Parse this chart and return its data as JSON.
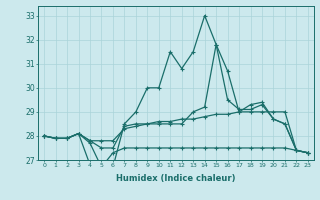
{
  "xlabel": "Humidex (Indice chaleur)",
  "xlim": [
    -0.5,
    23.5
  ],
  "ylim": [
    27,
    33.4
  ],
  "yticks": [
    27,
    28,
    29,
    30,
    31,
    32,
    33
  ],
  "xticks": [
    0,
    1,
    2,
    3,
    4,
    5,
    6,
    7,
    8,
    9,
    10,
    11,
    12,
    13,
    14,
    15,
    16,
    17,
    18,
    19,
    20,
    21,
    22,
    23
  ],
  "bg_color": "#cce9ed",
  "grid_color": "#aad4d9",
  "line_color": "#1a6e6a",
  "line_width": 0.9,
  "marker": "+",
  "marker_size": 3.5,
  "marker_ew": 0.8,
  "series": [
    [
      28.0,
      27.9,
      27.9,
      28.1,
      27.7,
      26.7,
      26.7,
      28.5,
      29.0,
      30.0,
      30.0,
      31.5,
      30.8,
      31.5,
      33.0,
      31.8,
      30.7,
      29.0,
      29.3,
      29.4,
      28.7,
      28.5,
      27.4,
      27.3
    ],
    [
      28.0,
      27.9,
      27.9,
      28.1,
      27.8,
      27.5,
      27.5,
      28.4,
      28.5,
      28.5,
      28.5,
      28.5,
      28.5,
      29.0,
      29.2,
      31.8,
      29.5,
      29.1,
      29.1,
      29.3,
      28.7,
      28.5,
      27.4,
      27.3
    ],
    [
      28.0,
      27.9,
      27.9,
      28.1,
      27.8,
      27.8,
      27.8,
      28.3,
      28.4,
      28.5,
      28.6,
      28.6,
      28.7,
      28.7,
      28.8,
      28.9,
      28.9,
      29.0,
      29.0,
      29.0,
      29.0,
      29.0,
      27.4,
      27.3
    ],
    [
      28.0,
      27.9,
      27.9,
      28.1,
      26.8,
      26.7,
      27.3,
      27.5,
      27.5,
      27.5,
      27.5,
      27.5,
      27.5,
      27.5,
      27.5,
      27.5,
      27.5,
      27.5,
      27.5,
      27.5,
      27.5,
      27.5,
      27.4,
      27.3
    ]
  ]
}
